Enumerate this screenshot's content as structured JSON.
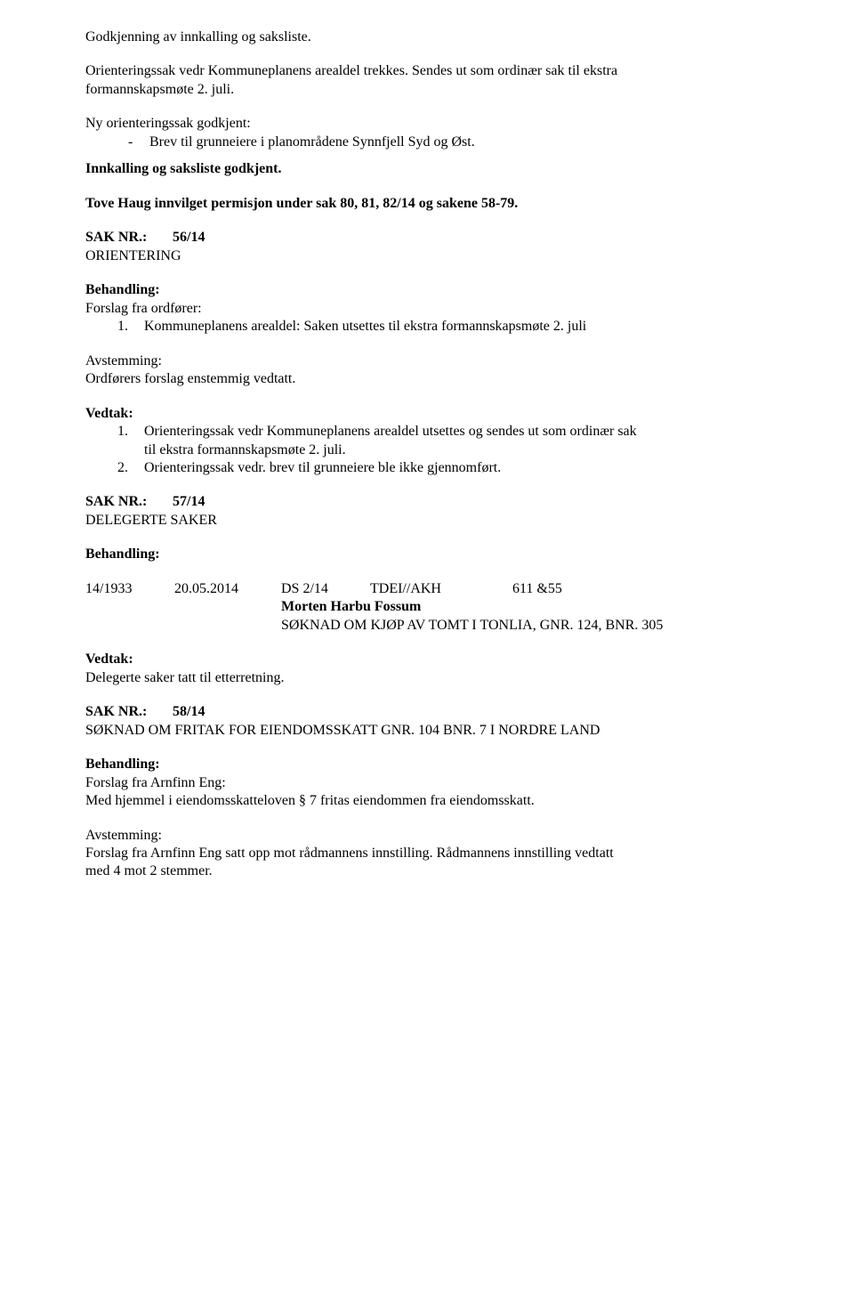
{
  "intro": {
    "p1": "Godkjenning av innkalling og saksliste.",
    "p2a": "Orienteringssak vedr Kommuneplanens arealdel trekkes. Sendes ut som ordinær sak til ekstra",
    "p2b": "formannskapsmøte 2. juli.",
    "p3": "Ny orienteringssak godkjent:",
    "p3_item_marker": "-",
    "p3_item": "Brev til grunneiere i planområdene Synnfjell Syd og Øst.",
    "p4": "Innkalling og saksliste godkjent.",
    "p5": "Tove Haug innvilget permisjon under sak 80, 81, 82/14 og sakene 58-79."
  },
  "sak56": {
    "label": "SAK NR.:",
    "num": "56/14",
    "title": "ORIENTERING",
    "behandling": "Behandling:",
    "forslag": "Forslag fra ordfører:",
    "item1_marker": "1.",
    "item1": "Kommuneplanens arealdel:  Saken utsettes til ekstra formannskapsmøte 2. juli",
    "avstemming": "Avstemming:",
    "avstemming_txt": "Ordførers forslag enstemmig vedtatt.",
    "vedtak": "Vedtak:",
    "v1_marker": "1.",
    "v1a": "Orienteringssak vedr Kommuneplanens arealdel utsettes og sendes ut som ordinær sak",
    "v1b": "til ekstra formannskapsmøte 2. juli.",
    "v2_marker": "2.",
    "v2": "Orienteringssak vedr. brev til grunneiere ble ikke gjennomført."
  },
  "sak57": {
    "label": "SAK NR.:",
    "num": "57/14",
    "title": "DELEGERTE SAKER",
    "behandling": "Behandling:",
    "row": {
      "c1": "14/1933",
      "c2": "20.05.2014",
      "c3": "DS  2/14",
      "c4": "TDEI//AKH",
      "c5": "611 &55"
    },
    "sub1": "Morten Harbu Fossum",
    "sub2": "SØKNAD OM KJØP AV TOMT I TONLIA, GNR. 124, BNR. 305",
    "vedtak": "Vedtak:",
    "vedtak_txt": "Delegerte saker tatt til etterretning."
  },
  "sak58": {
    "label": "SAK NR.:",
    "num": "58/14",
    "title": "SØKNAD OM FRITAK FOR EIENDOMSSKATT GNR. 104 BNR. 7 I NORDRE LAND",
    "behandling": "Behandling:",
    "forslag": "Forslag fra Arnfinn Eng:",
    "forslag_txt": "Med hjemmel i eiendomsskatteloven § 7 fritas eiendommen fra eiendomsskatt.",
    "avstemming": "Avstemming:",
    "av_txt_a": "Forslag fra Arnfinn Eng satt opp mot rådmannens innstilling. Rådmannens innstilling vedtatt",
    "av_txt_b": "med 4 mot 2 stemmer."
  }
}
